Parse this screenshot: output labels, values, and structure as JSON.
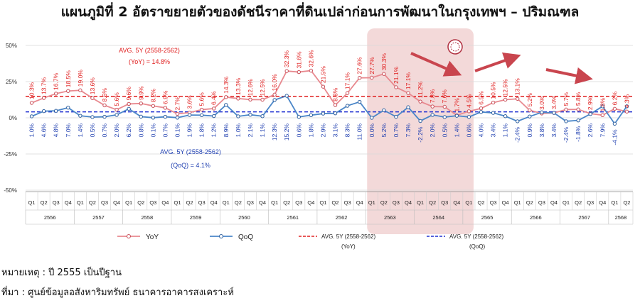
{
  "title": "แผนภูมิที่ 2 อัตราขยายตัวของดัชนีราคาที่ดินเปล่าก่อนการพัฒนาในกรุงเทพฯ – ปริมณฑล",
  "note": "หมายเหตุ : ปี 2555 เป็นปีฐาน",
  "source": "ที่มา : ศูนย์ข้อมูลอสังหาริมทรัพย์ ธนาคารอาคารสงเคราะห์",
  "colors": {
    "yoy": "#E8898F",
    "yoy_marker": "#C9505A",
    "qoq": "#4A86C8",
    "qoq_marker": "#2E5F9E",
    "avg_yoy": "#E02020",
    "avg_qoq": "#1F2FD0",
    "highlight": "#F0CFCF",
    "arrow": "#C9454E",
    "yoy_label": "#E02020",
    "qoq_label": "#1F3FB0"
  },
  "chart_data": {
    "type": "line",
    "ylim": [
      -50,
      50
    ],
    "yticks": [
      "50%",
      "25%",
      "0%",
      "-25%",
      "-50%"
    ],
    "ytick_values": [
      50,
      25,
      0,
      -25,
      -50
    ],
    "quarters": [
      "Q1",
      "Q2",
      "Q3",
      "Q4",
      "Q1",
      "Q2",
      "Q3",
      "Q4",
      "Q1",
      "Q2",
      "Q3",
      "Q4",
      "Q1",
      "Q2",
      "Q3",
      "Q4",
      "Q1",
      "Q2",
      "Q3",
      "Q4",
      "Q1",
      "Q2",
      "Q3",
      "Q4",
      "Q1",
      "Q2",
      "Q3",
      "Q4",
      "Q1",
      "Q2",
      "Q3",
      "Q4",
      "Q1",
      "Q2",
      "Q3",
      "Q4",
      "Q1",
      "Q2",
      "Q3",
      "Q4",
      "Q1",
      "Q2",
      "Q3",
      "Q4",
      "Q1",
      "Q2",
      "Q3",
      "Q4",
      "Q1",
      "Q2"
    ],
    "years": [
      {
        "label": "2556",
        "count": 4
      },
      {
        "label": "2557",
        "count": 4
      },
      {
        "label": "2558",
        "count": 4
      },
      {
        "label": "2559",
        "count": 4
      },
      {
        "label": "2560",
        "count": 4
      },
      {
        "label": "2561",
        "count": 4
      },
      {
        "label": "2562",
        "count": 4
      },
      {
        "label": "2563",
        "count": 4
      },
      {
        "label": "2564",
        "count": 4
      },
      {
        "label": "2565",
        "count": 4
      },
      {
        "label": "2566",
        "count": 4
      },
      {
        "label": "2567",
        "count": 4
      },
      {
        "label": "2568",
        "count": 2
      }
    ],
    "series": [
      {
        "name": "YoY",
        "values": [
          10.3,
          13.7,
          16.7,
          18.5,
          19.0,
          13.6,
          8.6,
          5.6,
          9.6,
          9.9,
          8.2,
          6.9,
          2.7,
          3.6,
          5.6,
          6.4,
          14.3,
          13.3,
          12.6,
          12.5,
          16.0,
          32.3,
          31.6,
          32.6,
          21.5,
          8.8,
          17.1,
          27.6,
          27.7,
          30.3,
          21.1,
          17.1,
          11.2,
          7.8,
          7.6,
          1.7,
          4.5,
          6.5,
          10.5,
          12.5,
          13.1,
          5.2,
          3.0,
          3.4,
          5.7,
          5.8,
          2.9,
          1.8,
          6.2,
          4.3
        ],
        "labels": [
          "10.3%",
          "13.7%",
          "16.7%",
          "18.5%",
          "19.0%",
          "13.6%",
          "8.6%",
          "5.6%",
          "9.6%",
          "9.9%",
          "8.2%",
          "6.9%",
          "2.7%",
          "3.6%",
          "5.6%",
          "6.4%",
          "14.3%",
          "13.3%",
          "12.6%",
          "12.5%",
          "16.0%",
          "32.3%",
          "31.6%",
          "32.6%",
          "21.5%",
          "8.8%",
          "17.1%",
          "27.6%",
          "27.7%",
          "30.3%",
          "21.1%",
          "17.1%",
          "11.2%",
          "7.8%",
          "7.6%",
          "1.7%",
          "4.5%",
          "6.5%",
          "10.5%",
          "12.5%",
          "13.1%",
          "5.2%",
          "3.0%",
          "3.4%",
          "5.7%",
          "5.8%",
          "2.9%",
          "1.8%",
          "6.2%",
          "4.3%"
        ]
      },
      {
        "name": "QoQ",
        "values": [
          1.0,
          4.6,
          4.8,
          7.0,
          1.4,
          0.5,
          0.7,
          2.0,
          6.2,
          0.8,
          0.1,
          0.7,
          0.1,
          1.9,
          1.8,
          1.2,
          8.9,
          1.0,
          2.1,
          1.1,
          12.3,
          15.2,
          0.6,
          1.8,
          2.9,
          3.1,
          8.3,
          11.0,
          0.0,
          5.2,
          0.7,
          7.3,
          -2.2,
          2.0,
          0.5,
          1.4,
          0.6,
          4.0,
          3.4,
          1.1,
          -2.4,
          0.9,
          3.8,
          3.4,
          -2.4,
          -1.8,
          2.6,
          7.9,
          -4.1,
          7.9
        ],
        "labels": [
          "1.0%",
          "4.6%",
          "4.8%",
          "7.0%",
          "1.4%",
          "0.5%",
          "0.7%",
          "2.0%",
          "6.2%",
          "0.8%",
          "0.1%",
          "0.7%",
          "0.1%",
          "1.9%",
          "1.8%",
          "1.2%",
          "8.9%",
          "1.0%",
          "2.1%",
          "1.1%",
          "12.3%",
          "15.2%",
          "0.6%",
          "1.8%",
          "2.9%",
          "3.1%",
          "8.3%",
          "11.0%",
          "0.0%",
          "5.2%",
          "0.7%",
          "7.3%",
          "-2.2%",
          "2.0%",
          "0.5%",
          "1.4%",
          "0.6%",
          "4.0%",
          "3.4%",
          "1.1%",
          "-2.4%",
          "0.9%",
          "3.8%",
          "3.4%",
          "-2.4%",
          "-1.8%",
          "2.6%",
          "7.9%",
          "-4.1%",
          ""
        ]
      }
    ],
    "averages": [
      {
        "name": "AVG. 5Y (2558-2562) (YoY)",
        "value": 14.8,
        "label_line1": "AVG. 5Y (2558-2562)",
        "label_line2": "(YoY) = 14.8%"
      },
      {
        "name": "AVG. 5Y (2558-2562) (QoQ)",
        "value": 4.1,
        "label_line1": "AVG. 5Y (2558-2562)",
        "label_line2": "(QoQ) = 4.1%"
      }
    ],
    "highlight_range": {
      "from_index": 28,
      "to_index": 36
    },
    "legend": {
      "position": "bottom",
      "items": [
        {
          "label": "YoY",
          "kind": "series"
        },
        {
          "label": "QoQ",
          "kind": "series"
        },
        {
          "label": "AVG. 5Y (2558-2562)",
          "sub": "(YoY)",
          "kind": "avg"
        },
        {
          "label": "AVG. 5Y (2558-2562)",
          "sub": "(QoQ)",
          "kind": "avg"
        }
      ]
    }
  }
}
